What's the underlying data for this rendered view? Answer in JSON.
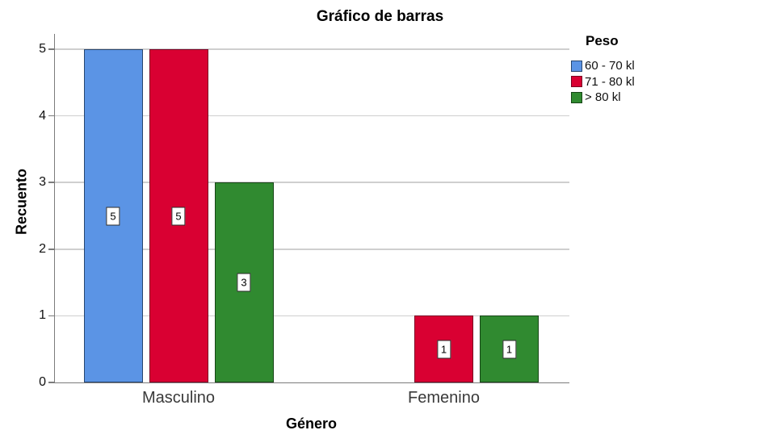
{
  "chart_data": {
    "type": "bar",
    "title": "Gráfico de barras",
    "xlabel": "Género",
    "ylabel": "Recuento",
    "legend_title": "Peso",
    "legend_position": "right",
    "grid": true,
    "categories": [
      "Masculino",
      "Femenino"
    ],
    "series": [
      {
        "name": "60 - 70 kl",
        "color": "#5B94E5",
        "border_color": "#27466F",
        "values": [
          5,
          null
        ]
      },
      {
        "name": "71 - 80 kl",
        "color": "#D90032",
        "border_color": "#7A0023",
        "values": [
          5,
          1
        ]
      },
      {
        "name": "> 80 kl",
        "color": "#308A30",
        "border_color": "#174517",
        "values": [
          3,
          1
        ]
      }
    ],
    "ylim": [
      0,
      5
    ],
    "yticks": [
      0,
      1,
      2,
      3,
      4,
      5
    ],
    "bar_labels_shown": true
  },
  "colors": {
    "gridline": "#CFCFCF",
    "axis": "#7B7B7B",
    "category_label_text": "#3A3A3A",
    "value_label_bg": "#FFFFFF",
    "value_label_border": "#2B2B2B"
  }
}
